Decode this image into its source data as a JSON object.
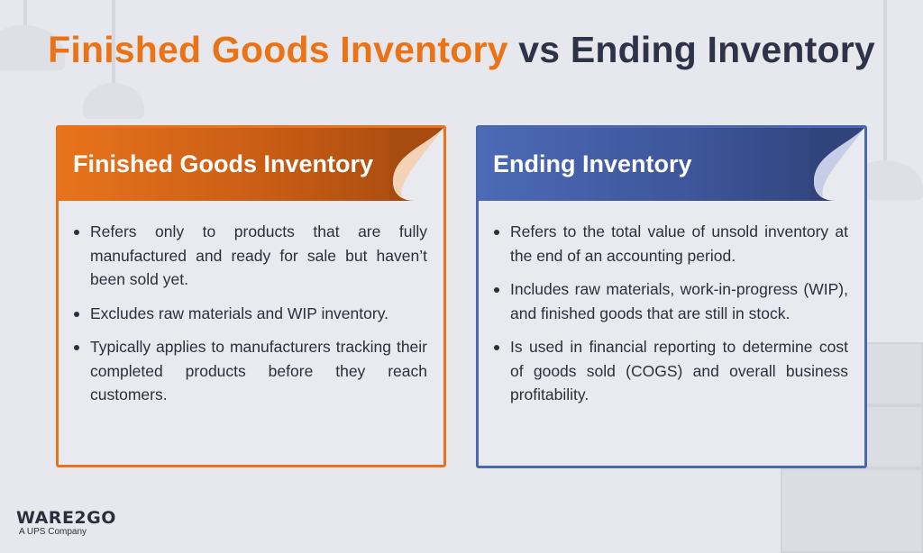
{
  "title": {
    "part1": "Finished Goods Inventory",
    "part2": " vs Ending Inventory"
  },
  "colors": {
    "orange": "#e8731c",
    "blue": "#4a67b2",
    "dark_text": "#2b2f3d"
  },
  "cards": [
    {
      "heading": "Finished Goods Inventory",
      "bullets": [
        "Refers only to products that are fully manufactured and ready for sale but haven’t been sold yet.",
        "Excludes raw materials and WIP inventory.",
        "Typically applies to manufacturers tracking their completed products before they reach customers."
      ]
    },
    {
      "heading": "Ending Inventory",
      "bullets": [
        "Refers to the total value of unsold inventory at the end of an accounting period.",
        "Includes raw materials, work-in-progress (WIP), and finished goods that are still in stock.",
        "Is used in financial reporting to determine cost of goods sold (COGS) and overall business profitability."
      ]
    }
  ],
  "logo": {
    "name": "WARE2GO",
    "subtitle": "A UPS Company"
  }
}
